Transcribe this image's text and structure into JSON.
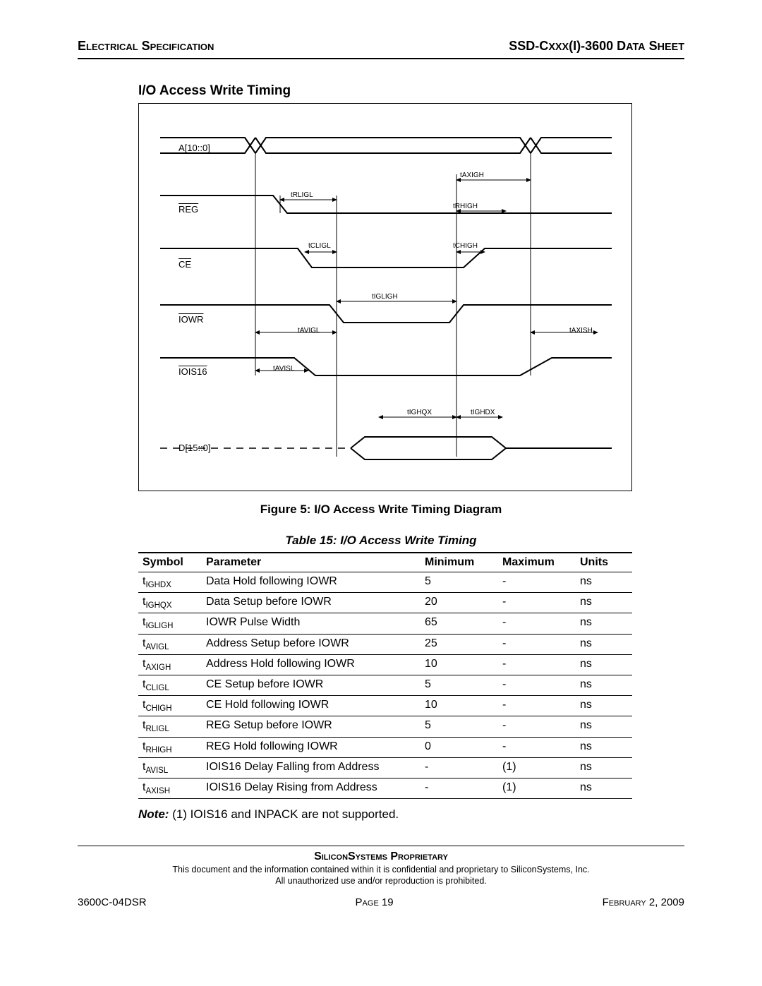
{
  "header": {
    "left": "Electrical Specification",
    "right_a": "SSD-C",
    "right_b": "xxx",
    "right_c": "(I)-3600 D",
    "right_d": "ata",
    "right_e": " S",
    "right_f": "heet"
  },
  "section_title": "I/O Access Write Timing",
  "diagram": {
    "signals": {
      "addr": "A[10::0]",
      "reg": "REG",
      "ce": "CE",
      "iowr": "IOWR",
      "iois16": "IOIS16",
      "data": "D[15::0]"
    },
    "tlabels": {
      "taxigh": "tAXIGH",
      "trligl": "tRLIGL",
      "trhigh": "tRHIGH",
      "tcligl": "tCLIGL",
      "tchigh": "tCHIGH",
      "tigligh": "tIGLIGH",
      "tavigl": "tAVIGL",
      "taxish": "tAXISH",
      "tavisl": "tAVISL",
      "tighqx": "tIGHQX",
      "tighdx": "tIGHDX"
    }
  },
  "figure_caption": "Figure 5:  I/O Access Write Timing Diagram",
  "table_caption": "Table 15:  I/O Access Write Timing",
  "columns": {
    "c0": "Symbol",
    "c1": "Parameter",
    "c2": "Minimum",
    "c3": "Maximum",
    "c4": "Units"
  },
  "rows": [
    {
      "sym_pre": "t",
      "sym_sub": "IGHDX",
      "param": "Data Hold following IOWR",
      "min": "5",
      "max": "-",
      "units": "ns"
    },
    {
      "sym_pre": "t",
      "sym_sub": "IGHQX",
      "param": "Data Setup before IOWR",
      "min": "20",
      "max": "-",
      "units": "ns"
    },
    {
      "sym_pre": "t",
      "sym_sub": "IGLIGH",
      "param": "IOWR Pulse Width",
      "min": "65",
      "max": "-",
      "units": "ns"
    },
    {
      "sym_pre": "t",
      "sym_sub": "AVIGL",
      "param": "Address Setup before IOWR",
      "min": "25",
      "max": "-",
      "units": "ns"
    },
    {
      "sym_pre": "t",
      "sym_sub": "AXIGH",
      "param": "Address Hold following IOWR",
      "min": "10",
      "max": "-",
      "units": "ns"
    },
    {
      "sym_pre": "t",
      "sym_sub": "CLIGL",
      "param": "CE Setup before IOWR",
      "min": "5",
      "max": "-",
      "units": "ns"
    },
    {
      "sym_pre": "t",
      "sym_sub": "CHIGH",
      "param": "CE Hold following IOWR",
      "min": "10",
      "max": "-",
      "units": "ns"
    },
    {
      "sym_pre": "t",
      "sym_sub": "RLIGL",
      "param": "REG Setup before IOWR",
      "min": "5",
      "max": "-",
      "units": "ns"
    },
    {
      "sym_pre": "t",
      "sym_sub": "RHIGH",
      "param": "REG Hold following IOWR",
      "min": "0",
      "max": "-",
      "units": "ns"
    },
    {
      "sym_pre": "t",
      "sym_sub": "AVISL",
      "param": "IOIS16 Delay Falling from Address",
      "min": "-",
      "max": "(1)",
      "units": "ns"
    },
    {
      "sym_pre": "t",
      "sym_sub": "AXISH",
      "param": "IOIS16 Delay Rising from Address",
      "min": "-",
      "max": "(1)",
      "units": "ns"
    }
  ],
  "note_label": "Note:",
  "note_text": " (1) IOIS16 and INPACK are not supported.",
  "proprietary": "SiliconSystems Proprietary",
  "legal1": "This document and the information contained within it is confidential and proprietary to SiliconSystems, Inc.",
  "legal2": "All unauthorized use and/or reproduction is prohibited.",
  "footer": {
    "left": "3600C-04DSR",
    "mid_a": "Page ",
    "mid_b": "19",
    "right": "February 2, 2009"
  }
}
